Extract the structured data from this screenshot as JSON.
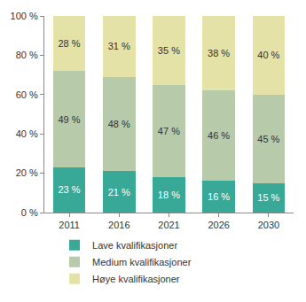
{
  "chart_data": {
    "type": "bar",
    "stacked": true,
    "categories": [
      "2011",
      "2016",
      "2021",
      "2026",
      "2030"
    ],
    "series": [
      {
        "name": "Lave kvalifikasjoner",
        "color": "#38a897",
        "values": [
          23,
          21,
          18,
          16,
          15
        ],
        "value_labels": [
          "23 %",
          "21 %",
          "18 %",
          "16 %",
          "15 %"
        ]
      },
      {
        "name": "Medium kvalifikasjoner",
        "color": "#b7caa9",
        "values": [
          49,
          48,
          47,
          46,
          45
        ],
        "value_labels": [
          "49 %",
          "48 %",
          "47 %",
          "46 %",
          "45 %"
        ]
      },
      {
        "name": "Høye kvalifikasjoner",
        "color": "#e4e2a6",
        "values": [
          28,
          31,
          35,
          38,
          40
        ],
        "value_labels": [
          "28 %",
          "31 %",
          "35 %",
          "38 %",
          "40 %"
        ]
      }
    ],
    "ylim": [
      0,
      100
    ],
    "yticks": [
      {
        "value": 0,
        "label": "0 %"
      },
      {
        "value": 20,
        "label": "20 %"
      },
      {
        "value": 40,
        "label": "40 %"
      },
      {
        "value": 60,
        "label": "60 %"
      },
      {
        "value": 80,
        "label": "80 %"
      },
      {
        "value": 100,
        "label": "100 %"
      }
    ],
    "data_labels": true,
    "grid": false,
    "legend": "bottom"
  }
}
